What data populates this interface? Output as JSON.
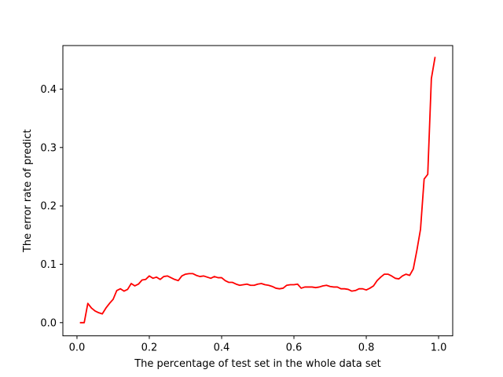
{
  "chart_data": {
    "type": "line",
    "title": "",
    "xlabel": "The percentage of test set in the whole data set",
    "ylabel": "The error rate of predict",
    "xlim": [
      -0.039,
      1.039
    ],
    "ylim": [
      -0.0226,
      0.4746
    ],
    "xticks": [
      0.0,
      0.2,
      0.4,
      0.6,
      0.8,
      1.0
    ],
    "xtick_labels": [
      "0.0",
      "0.2",
      "0.4",
      "0.6",
      "0.8",
      "1.0"
    ],
    "yticks": [
      0.0,
      0.1,
      0.2,
      0.3,
      0.4
    ],
    "ytick_labels": [
      "0.0",
      "0.1",
      "0.2",
      "0.3",
      "0.4"
    ],
    "grid": false,
    "legend": "none",
    "series": [
      {
        "color": "#ff0000",
        "x": [
          0.01,
          0.02,
          0.03,
          0.04,
          0.05,
          0.06,
          0.07,
          0.08,
          0.09,
          0.1,
          0.11,
          0.12,
          0.13,
          0.14,
          0.15,
          0.16,
          0.17,
          0.18,
          0.19,
          0.2,
          0.21,
          0.22,
          0.23,
          0.24,
          0.25,
          0.26,
          0.27,
          0.28,
          0.29,
          0.3,
          0.31,
          0.32,
          0.33,
          0.34,
          0.35,
          0.36,
          0.37,
          0.38,
          0.39,
          0.4,
          0.41,
          0.42,
          0.43,
          0.44,
          0.45,
          0.46,
          0.47,
          0.48,
          0.49,
          0.5,
          0.51,
          0.52,
          0.53,
          0.54,
          0.55,
          0.56,
          0.57,
          0.58,
          0.59,
          0.6,
          0.61,
          0.62,
          0.63,
          0.64,
          0.65,
          0.66,
          0.67,
          0.68,
          0.69,
          0.7,
          0.71,
          0.72,
          0.73,
          0.74,
          0.75,
          0.76,
          0.77,
          0.78,
          0.79,
          0.8,
          0.81,
          0.82,
          0.83,
          0.84,
          0.85,
          0.86,
          0.87,
          0.88,
          0.89,
          0.9,
          0.91,
          0.92,
          0.93,
          0.94,
          0.95,
          0.96,
          0.97,
          0.98,
          0.99
        ],
        "y": [
          0.0,
          0.0,
          0.033,
          0.025,
          0.02,
          0.017,
          0.015,
          0.025,
          0.033,
          0.04,
          0.055,
          0.058,
          0.054,
          0.057,
          0.067,
          0.063,
          0.066,
          0.073,
          0.074,
          0.08,
          0.076,
          0.078,
          0.074,
          0.079,
          0.08,
          0.077,
          0.074,
          0.072,
          0.08,
          0.083,
          0.084,
          0.084,
          0.081,
          0.079,
          0.08,
          0.078,
          0.076,
          0.079,
          0.077,
          0.077,
          0.072,
          0.069,
          0.069,
          0.066,
          0.064,
          0.065,
          0.066,
          0.064,
          0.064,
          0.066,
          0.067,
          0.065,
          0.064,
          0.062,
          0.059,
          0.058,
          0.059,
          0.064,
          0.065,
          0.065,
          0.066,
          0.059,
          0.061,
          0.061,
          0.061,
          0.06,
          0.061,
          0.063,
          0.064,
          0.062,
          0.061,
          0.061,
          0.058,
          0.058,
          0.057,
          0.054,
          0.055,
          0.058,
          0.058,
          0.056,
          0.059,
          0.063,
          0.072,
          0.078,
          0.083,
          0.083,
          0.08,
          0.076,
          0.075,
          0.08,
          0.083,
          0.081,
          0.092,
          0.124,
          0.16,
          0.246,
          0.254,
          0.418,
          0.454
        ]
      }
    ]
  }
}
